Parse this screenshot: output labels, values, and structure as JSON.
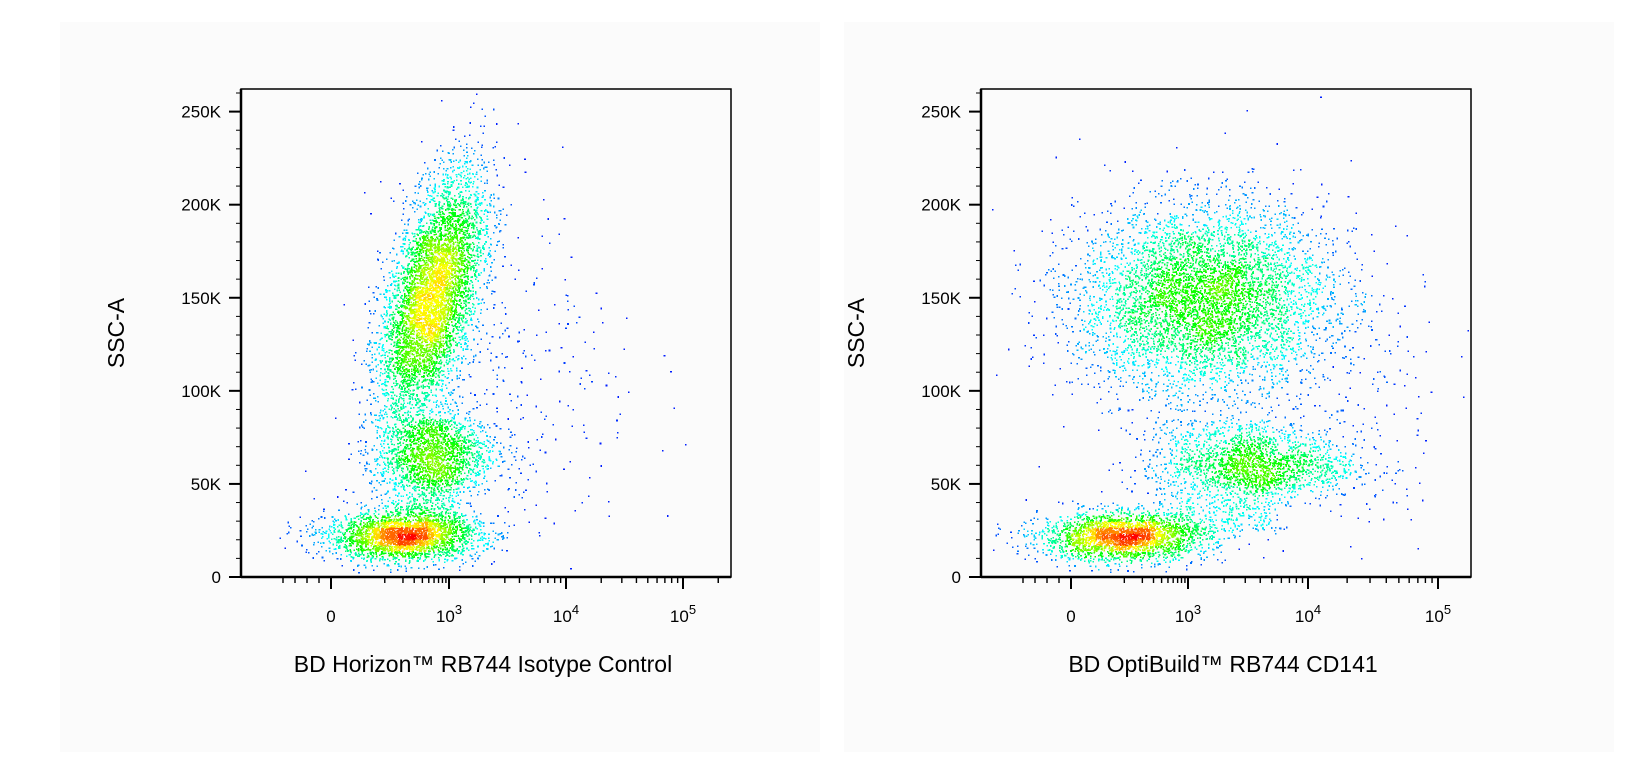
{
  "chart_data": [
    {
      "type": "scatter",
      "style": "density-colored flow cytometry dot plot",
      "xlabel": "BD Horizon™ RB744 Isotype Control",
      "ylabel": "SSC-A",
      "x_scale": "biexponential",
      "ylim": [
        0,
        262144
      ],
      "y_ticks": [
        0,
        50000,
        100000,
        150000,
        200000,
        250000
      ],
      "y_tick_labels": [
        "0",
        "50K",
        "100K",
        "150K",
        "200K",
        "250K"
      ],
      "x_ticks": [
        0,
        1000,
        10000,
        100000
      ],
      "x_tick_labels": [
        {
          "base": "0",
          "exp": ""
        },
        {
          "base": "10",
          "exp": "3"
        },
        {
          "base": "10",
          "exp": "4"
        },
        {
          "base": "10",
          "exp": "5"
        }
      ],
      "populations": [
        {
          "name": "",
          "x_center": 200,
          "y_center": 22000,
          "share": 0.26
        },
        {
          "name": "",
          "x_center": 550,
          "y_center": 150000,
          "share": 0.56
        },
        {
          "name": "",
          "x_center": 650,
          "y_center": 65000,
          "share": 0.14
        },
        {
          "name": "",
          "x_center": 3000,
          "y_center": 100000,
          "share": 0.04
        }
      ],
      "colors": [
        "#0000ff",
        "#00ffff",
        "#00ff00",
        "#ffff00",
        "#ff0000"
      ]
    },
    {
      "type": "scatter",
      "style": "density-colored flow cytometry dot plot",
      "xlabel": "BD OptiBuild™ RB744 CD141",
      "ylabel": "SSC-A",
      "x_scale": "biexponential",
      "ylim": [
        0,
        262144
      ],
      "y_ticks": [
        0,
        50000,
        100000,
        150000,
        200000,
        250000
      ],
      "y_tick_labels": [
        "0",
        "50K",
        "100K",
        "150K",
        "200K",
        "250K"
      ],
      "x_ticks": [
        0,
        1000,
        10000,
        100000
      ],
      "x_tick_labels": [
        {
          "base": "0",
          "exp": ""
        },
        {
          "base": "10",
          "exp": "3"
        },
        {
          "base": "10",
          "exp": "4"
        },
        {
          "base": "10",
          "exp": "5"
        }
      ],
      "populations": [
        {
          "name": "",
          "x_center": 100,
          "y_center": 22000,
          "share": 0.25
        },
        {
          "name": "",
          "x_center": 1300,
          "y_center": 150000,
          "share": 0.55
        },
        {
          "name": "",
          "x_center": 4000,
          "y_center": 60000,
          "share": 0.14
        },
        {
          "name": "",
          "x_center": 6000,
          "y_center": 100000,
          "share": 0.06
        }
      ],
      "colors": [
        "#0000ff",
        "#00ffff",
        "#00ff00",
        "#ffff00",
        "#ff0000"
      ]
    }
  ]
}
